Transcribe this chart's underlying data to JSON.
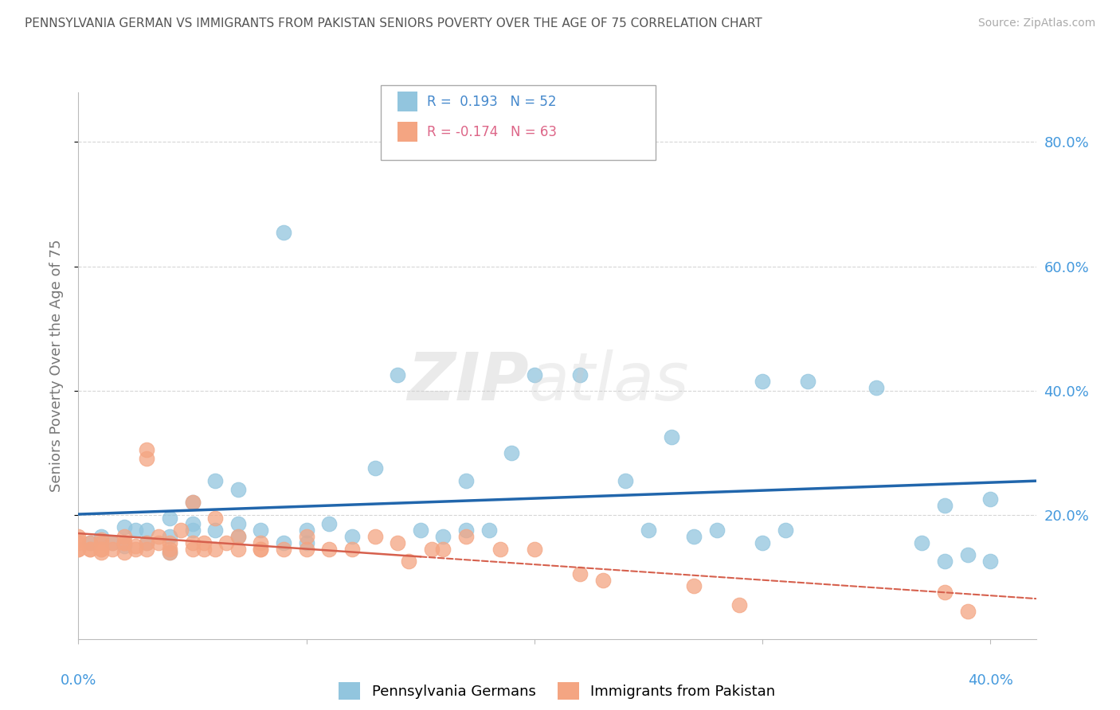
{
  "title": "PENNSYLVANIA GERMAN VS IMMIGRANTS FROM PAKISTAN SENIORS POVERTY OVER THE AGE OF 75 CORRELATION CHART",
  "source": "Source: ZipAtlas.com",
  "ylabel": "Seniors Poverty Over the Age of 75",
  "xlim": [
    0.0,
    0.42
  ],
  "ylim": [
    0.0,
    0.88
  ],
  "blue_color": "#92c5de",
  "pink_color": "#f4a582",
  "blue_line_color": "#2166ac",
  "pink_line_color": "#d6604d",
  "background_color": "#ffffff",
  "grid_color": "#cccccc",
  "title_color": "#555555",
  "legend_text_color_blue": "#4488cc",
  "legend_text_color_pink": "#dd6688",
  "watermark": "ZIPatlas",
  "blue_scatter_x": [
    0.005,
    0.01,
    0.015,
    0.02,
    0.02,
    0.025,
    0.03,
    0.03,
    0.04,
    0.04,
    0.04,
    0.05,
    0.05,
    0.05,
    0.06,
    0.06,
    0.07,
    0.07,
    0.07,
    0.08,
    0.09,
    0.09,
    0.1,
    0.1,
    0.11,
    0.12,
    0.13,
    0.14,
    0.15,
    0.16,
    0.17,
    0.17,
    0.18,
    0.19,
    0.2,
    0.22,
    0.24,
    0.25,
    0.26,
    0.27,
    0.28,
    0.3,
    0.3,
    0.31,
    0.32,
    0.35,
    0.37,
    0.38,
    0.38,
    0.39,
    0.4,
    0.4
  ],
  "blue_scatter_y": [
    0.155,
    0.165,
    0.155,
    0.15,
    0.18,
    0.175,
    0.155,
    0.175,
    0.14,
    0.165,
    0.195,
    0.175,
    0.185,
    0.22,
    0.175,
    0.255,
    0.165,
    0.185,
    0.24,
    0.175,
    0.155,
    0.655,
    0.155,
    0.175,
    0.185,
    0.165,
    0.275,
    0.425,
    0.175,
    0.165,
    0.175,
    0.255,
    0.175,
    0.3,
    0.425,
    0.425,
    0.255,
    0.175,
    0.325,
    0.165,
    0.175,
    0.155,
    0.415,
    0.175,
    0.415,
    0.405,
    0.155,
    0.125,
    0.215,
    0.135,
    0.125,
    0.225
  ],
  "pink_scatter_x": [
    0.0,
    0.0,
    0.0,
    0.0,
    0.0,
    0.005,
    0.005,
    0.005,
    0.01,
    0.01,
    0.01,
    0.01,
    0.01,
    0.015,
    0.015,
    0.02,
    0.02,
    0.02,
    0.02,
    0.025,
    0.025,
    0.03,
    0.03,
    0.03,
    0.03,
    0.035,
    0.035,
    0.04,
    0.04,
    0.04,
    0.045,
    0.05,
    0.05,
    0.05,
    0.055,
    0.055,
    0.06,
    0.06,
    0.065,
    0.07,
    0.07,
    0.08,
    0.08,
    0.08,
    0.09,
    0.1,
    0.1,
    0.11,
    0.12,
    0.13,
    0.14,
    0.145,
    0.155,
    0.16,
    0.17,
    0.185,
    0.2,
    0.22,
    0.23,
    0.27,
    0.29,
    0.38,
    0.39
  ],
  "pink_scatter_y": [
    0.145,
    0.155,
    0.145,
    0.16,
    0.165,
    0.145,
    0.155,
    0.145,
    0.14,
    0.155,
    0.145,
    0.16,
    0.145,
    0.155,
    0.145,
    0.14,
    0.155,
    0.165,
    0.155,
    0.145,
    0.15,
    0.29,
    0.305,
    0.155,
    0.145,
    0.155,
    0.165,
    0.14,
    0.155,
    0.145,
    0.175,
    0.145,
    0.155,
    0.22,
    0.145,
    0.155,
    0.195,
    0.145,
    0.155,
    0.145,
    0.165,
    0.145,
    0.155,
    0.145,
    0.145,
    0.145,
    0.165,
    0.145,
    0.145,
    0.165,
    0.155,
    0.125,
    0.145,
    0.145,
    0.165,
    0.145,
    0.145,
    0.105,
    0.095,
    0.085,
    0.055,
    0.075,
    0.045
  ]
}
